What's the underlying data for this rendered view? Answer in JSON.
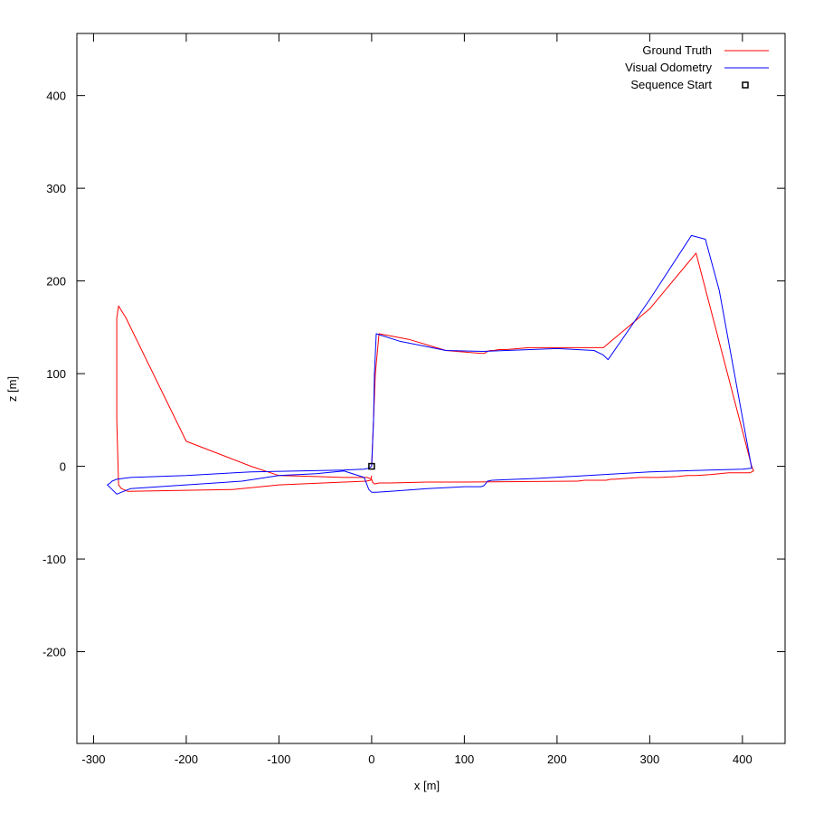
{
  "chart_data": {
    "type": "line",
    "title": "",
    "xlabel": "x [m]",
    "ylabel": "z [m]",
    "xlim": [
      -318,
      446
    ],
    "ylim": [
      -299,
      467
    ],
    "grid": false,
    "legend_position": "top-right",
    "x_ticks": [
      -300,
      -200,
      -100,
      0,
      100,
      200,
      300,
      400
    ],
    "y_ticks": [
      -200,
      -100,
      0,
      100,
      200,
      300,
      400
    ],
    "series": [
      {
        "name": "Ground Truth",
        "color": "#ff0000",
        "x": [
          0,
          2,
          4,
          8,
          40,
          80,
          117,
          122,
          125,
          128,
          132,
          137,
          145,
          170,
          210,
          250,
          300,
          350,
          410,
          412,
          408,
          385,
          365,
          350,
          340,
          330,
          310,
          290,
          275,
          262,
          258,
          253,
          240,
          230,
          222,
          100,
          60,
          20,
          8,
          3,
          1,
          0,
          -2,
          -5,
          -10,
          -30,
          -60,
          -100,
          -130,
          -200,
          -265,
          -273,
          -275,
          -275,
          -273,
          -270,
          -263,
          -150,
          -100,
          -30,
          -6,
          -1,
          0
        ],
        "y": [
          0,
          50,
          100,
          143,
          137,
          125,
          122,
          122,
          124,
          125,
          125,
          126,
          126,
          128,
          128,
          128,
          170,
          230,
          0,
          -5,
          -7,
          -7,
          -9,
          -10,
          -10,
          -11,
          -12,
          -12,
          -13,
          -14,
          -14,
          -15,
          -15,
          -15,
          -16,
          -17,
          -17,
          -18,
          -18,
          -19,
          -17,
          -14,
          -13,
          -12,
          -12,
          -12,
          -11,
          -10,
          0,
          27,
          160,
          173,
          160,
          50,
          -20,
          -24,
          -27,
          -25,
          -20,
          -17,
          -16,
          -15,
          -10
        ]
      },
      {
        "name": "Visual Odometry",
        "color": "#0000ff",
        "x": [
          0,
          2,
          3,
          5,
          30,
          80,
          120,
          200,
          240,
          250,
          255,
          300,
          345,
          360,
          375,
          410,
          400,
          300,
          180,
          130,
          125,
          122,
          121,
          118,
          100,
          60,
          20,
          5,
          0,
          -3,
          -5,
          -8,
          -30,
          -60,
          -100,
          -140,
          -200,
          -260,
          -275,
          -280,
          -285,
          -282,
          -280,
          -275,
          -260,
          -200,
          -130,
          -30,
          -8,
          -3,
          0
        ],
        "y": [
          0,
          50,
          100,
          143,
          135,
          125,
          124,
          127,
          125,
          120,
          115,
          180,
          249,
          245,
          190,
          -2,
          -3,
          -6,
          -13,
          -15,
          -16,
          -20,
          -21,
          -22,
          -22,
          -24,
          -27,
          -28,
          -28,
          -25,
          -20,
          -12,
          -5,
          -8,
          -10,
          -16,
          -20,
          -24,
          -30,
          -25,
          -20,
          -18,
          -16,
          -14,
          -12,
          -10,
          -6,
          -4,
          -3,
          -2,
          0
        ]
      },
      {
        "name": "Sequence Start",
        "color": "#000000",
        "x": [
          0
        ],
        "y": [
          0
        ]
      }
    ]
  }
}
